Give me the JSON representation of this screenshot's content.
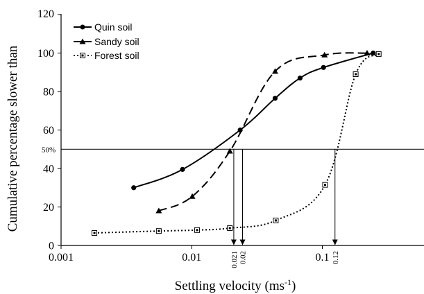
{
  "chart_data": {
    "type": "line",
    "title": "",
    "xlabel": "Settling velocity (ms",
    "xlabel_sup": "-1",
    "xlabel_suffix": ")",
    "ylabel": "Cumulative percentage slower than",
    "x_scale": "log",
    "xlim": [
      0.001,
      0.6
    ],
    "ylim": [
      0,
      120
    ],
    "x_ticks": [
      {
        "value": 0.001,
        "label": "0.001"
      },
      {
        "value": 0.01,
        "label": "0.01"
      },
      {
        "value": 0.1,
        "label": "0.1"
      }
    ],
    "y_ticks": [
      {
        "value": 0,
        "label": "0"
      },
      {
        "value": 20,
        "label": "20"
      },
      {
        "value": 40,
        "label": "40"
      },
      {
        "value": 60,
        "label": "60"
      },
      {
        "value": 80,
        "label": "80"
      },
      {
        "value": 100,
        "label": "100"
      },
      {
        "value": 120,
        "label": "120"
      }
    ],
    "grid": false,
    "legend_position": "top-left",
    "series": [
      {
        "name": "Quin soil",
        "marker": "circle",
        "line_style": "solid",
        "x": [
          0.0036,
          0.0085,
          0.0235,
          0.0435,
          0.0675,
          0.102,
          0.245
        ],
        "y": [
          30,
          39.5,
          60,
          76.5,
          87,
          92.5,
          100
        ]
      },
      {
        "name": "Sandy soil",
        "marker": "triangle",
        "line_style": "dashed",
        "x": [
          0.0056,
          0.0101,
          0.0196,
          0.0435,
          0.104,
          0.22
        ],
        "y": [
          18,
          25.5,
          49,
          90.5,
          99,
          100
        ]
      },
      {
        "name": "Forest soil",
        "marker": "square-dot",
        "line_style": "dotted",
        "x": [
          0.0018,
          0.0056,
          0.011,
          0.0196,
          0.044,
          0.105,
          0.18,
          0.27
        ],
        "y": [
          6.5,
          7.5,
          8,
          9,
          13,
          31.5,
          89,
          99.5
        ]
      }
    ],
    "annotations": {
      "reference_line": {
        "y": 50,
        "label": "50%"
      },
      "drop_lines": [
        {
          "x": 0.021,
          "label": "0.021"
        },
        {
          "x": 0.0245,
          "label": "0.02"
        },
        {
          "x": 0.125,
          "label": "0.12"
        }
      ]
    }
  }
}
